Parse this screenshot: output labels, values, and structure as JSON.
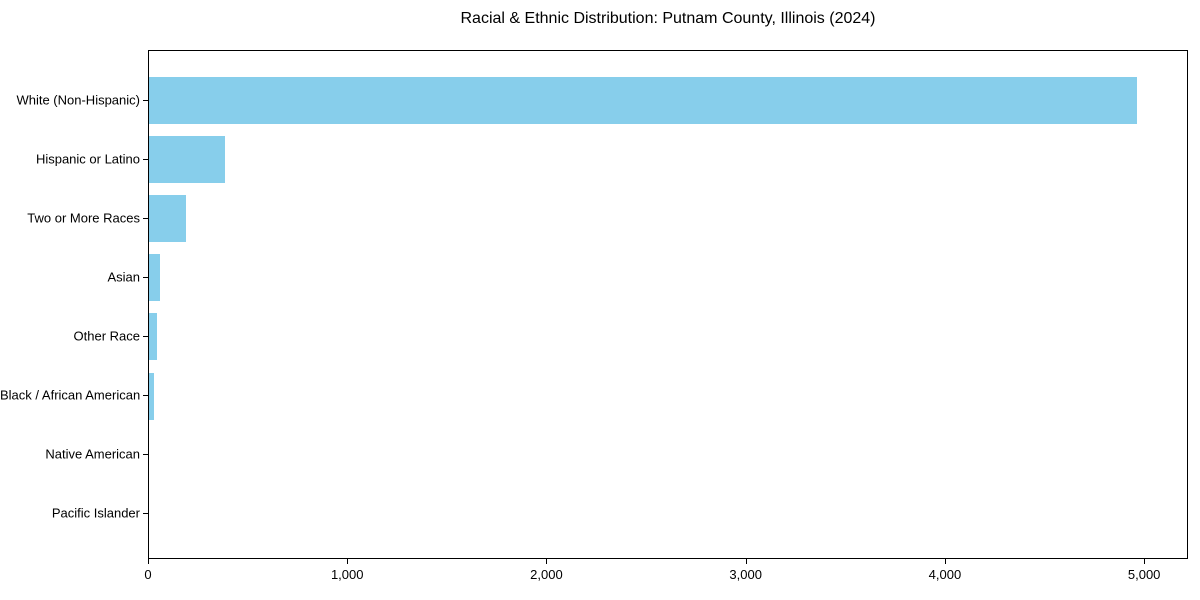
{
  "chart_data": {
    "type": "bar",
    "orientation": "horizontal",
    "title": "Racial & Ethnic Distribution: Putnam County, Illinois (2024)",
    "categories": [
      "White (Non-Hispanic)",
      "Hispanic or Latino",
      "Two or More Races",
      "Asian",
      "Other Race",
      "Black / African American",
      "Native American",
      "Pacific Islander"
    ],
    "values": [
      4960,
      380,
      185,
      55,
      40,
      25,
      0,
      0
    ],
    "xlabel": "",
    "ylabel": "",
    "xlim": [
      0,
      5220
    ],
    "x_ticks": [
      0,
      1000,
      2000,
      3000,
      4000,
      5000
    ],
    "x_tick_labels": [
      "0",
      "1,000",
      "2,000",
      "3,000",
      "4,000",
      "5,000"
    ],
    "bar_color": "#87CEEB",
    "axis_color": "#000000",
    "background_color": "#FFFFFF",
    "grid": false,
    "legend": null
  }
}
